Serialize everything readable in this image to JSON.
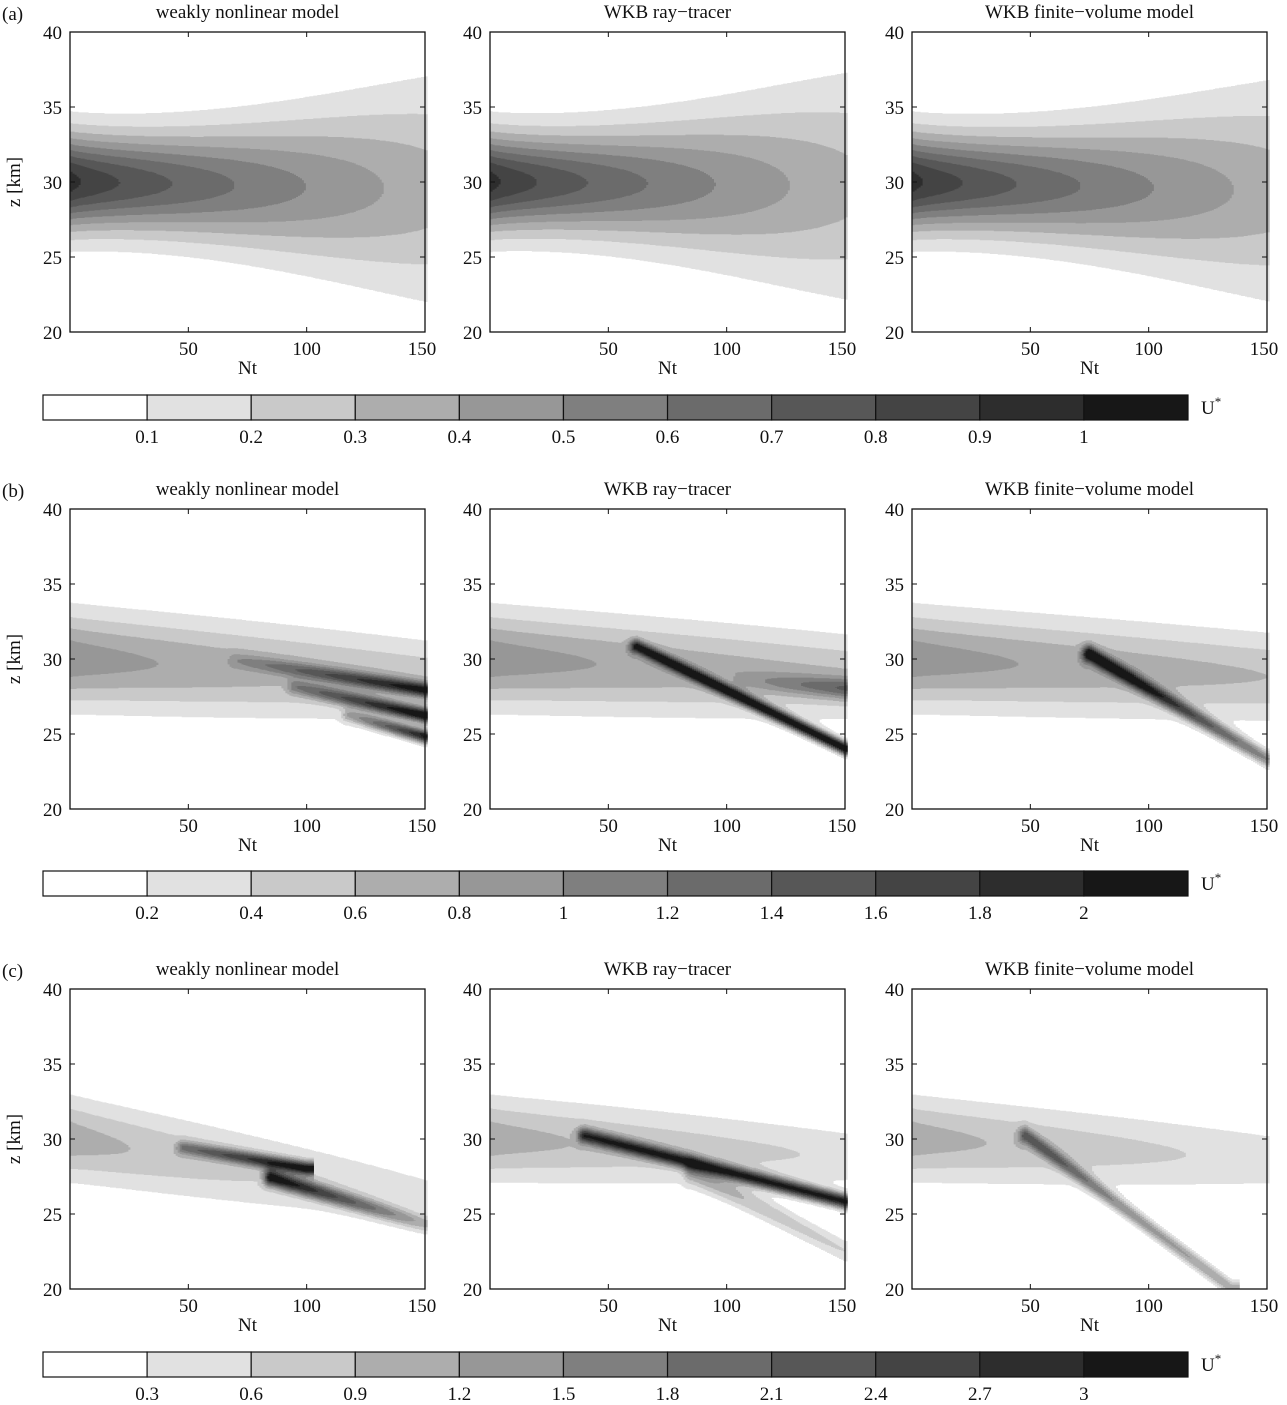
{
  "figure": {
    "rows": [
      {
        "label": "(a)",
        "colorbar": {
          "label": "U*",
          "ticks": [
            "0.1",
            "0.2",
            "0.3",
            "0.4",
            "0.5",
            "0.6",
            "0.7",
            "0.8",
            "0.9",
            "1"
          ],
          "levels": [
            0.1,
            0.2,
            0.3,
            0.4,
            0.5,
            0.6,
            0.7,
            0.8,
            0.9,
            1.0
          ]
        }
      },
      {
        "label": "(b)",
        "colorbar": {
          "label": "U*",
          "ticks": [
            "0.2",
            "0.4",
            "0.6",
            "0.8",
            "1",
            "1.2",
            "1.4",
            "1.6",
            "1.8",
            "2"
          ],
          "levels": [
            0.2,
            0.4,
            0.6,
            0.8,
            1.0,
            1.2,
            1.4,
            1.6,
            1.8,
            2.0
          ]
        }
      },
      {
        "label": "(c)",
        "colorbar": {
          "label": "U*",
          "ticks": [
            "0.3",
            "0.6",
            "0.9",
            "1.2",
            "1.5",
            "1.8",
            "2.1",
            "2.4",
            "2.7",
            "3"
          ],
          "levels": [
            0.3,
            0.6,
            0.9,
            1.2,
            1.5,
            1.8,
            2.1,
            2.4,
            2.7,
            3.0
          ]
        }
      }
    ],
    "colors": [
      "#ffffff",
      "#e1e1e1",
      "#c9c9c9",
      "#adadad",
      "#979797",
      "#7f7f7f",
      "#6b6b6b",
      "#575757",
      "#444444",
      "#2d2d2d",
      "#171717"
    ]
  },
  "chart_data": [
    {
      "type": "contour",
      "row": "(a)",
      "title": "weakly nonlinear model",
      "xlabel": "Nt",
      "ylabel": "z [km]",
      "xlim": [
        0,
        150
      ],
      "ylim": [
        20,
        40
      ],
      "xticks": [
        "50",
        "100",
        "150"
      ],
      "yticks": [
        "20",
        "25",
        "30",
        "35",
        "40"
      ]
    },
    {
      "type": "contour",
      "row": "(a)",
      "title": "WKB ray−tracer",
      "xlabel": "Nt",
      "ylabel": "",
      "xlim": [
        0,
        150
      ],
      "ylim": [
        20,
        40
      ],
      "xticks": [
        "50",
        "100",
        "150"
      ],
      "yticks": [
        "20",
        "25",
        "30",
        "35",
        "40"
      ]
    },
    {
      "type": "contour",
      "row": "(a)",
      "title": "WKB finite−volume model",
      "xlabel": "Nt",
      "ylabel": "",
      "xlim": [
        0,
        150
      ],
      "ylim": [
        20,
        40
      ],
      "xticks": [
        "50",
        "100",
        "150"
      ],
      "yticks": [
        "20",
        "25",
        "30",
        "35",
        "40"
      ]
    },
    {
      "type": "contour",
      "row": "(b)",
      "title": "weakly nonlinear model",
      "xlabel": "Nt",
      "ylabel": "z [km]",
      "xlim": [
        0,
        150
      ],
      "ylim": [
        20,
        40
      ],
      "xticks": [
        "50",
        "100",
        "150"
      ],
      "yticks": [
        "20",
        "25",
        "30",
        "35",
        "40"
      ]
    },
    {
      "type": "contour",
      "row": "(b)",
      "title": "WKB ray−tracer",
      "xlabel": "Nt",
      "ylabel": "",
      "xlim": [
        0,
        150
      ],
      "ylim": [
        20,
        40
      ],
      "xticks": [
        "50",
        "100",
        "150"
      ],
      "yticks": [
        "20",
        "25",
        "30",
        "35",
        "40"
      ]
    },
    {
      "type": "contour",
      "row": "(b)",
      "title": "WKB finite−volume model",
      "xlabel": "Nt",
      "ylabel": "",
      "xlim": [
        0,
        150
      ],
      "ylim": [
        20,
        40
      ],
      "xticks": [
        "50",
        "100",
        "150"
      ],
      "yticks": [
        "20",
        "25",
        "30",
        "35",
        "40"
      ]
    },
    {
      "type": "contour",
      "row": "(c)",
      "title": "weakly nonlinear model",
      "xlabel": "Nt",
      "ylabel": "z [km]",
      "xlim": [
        0,
        150
      ],
      "ylim": [
        20,
        40
      ],
      "xticks": [
        "50",
        "100",
        "150"
      ],
      "yticks": [
        "20",
        "25",
        "30",
        "35",
        "40"
      ]
    },
    {
      "type": "contour",
      "row": "(c)",
      "title": "WKB ray−tracer",
      "xlabel": "Nt",
      "ylabel": "",
      "xlim": [
        0,
        150
      ],
      "ylim": [
        20,
        40
      ],
      "xticks": [
        "50",
        "100",
        "150"
      ],
      "yticks": [
        "20",
        "25",
        "30",
        "35",
        "40"
      ]
    },
    {
      "type": "contour",
      "row": "(c)",
      "title": "WKB finite−volume model",
      "xlabel": "Nt",
      "ylabel": "",
      "xlim": [
        0,
        150
      ],
      "ylim": [
        20,
        40
      ],
      "xticks": [
        "50",
        "100",
        "150"
      ],
      "yticks": [
        "20",
        "25",
        "30",
        "35",
        "40"
      ]
    }
  ]
}
